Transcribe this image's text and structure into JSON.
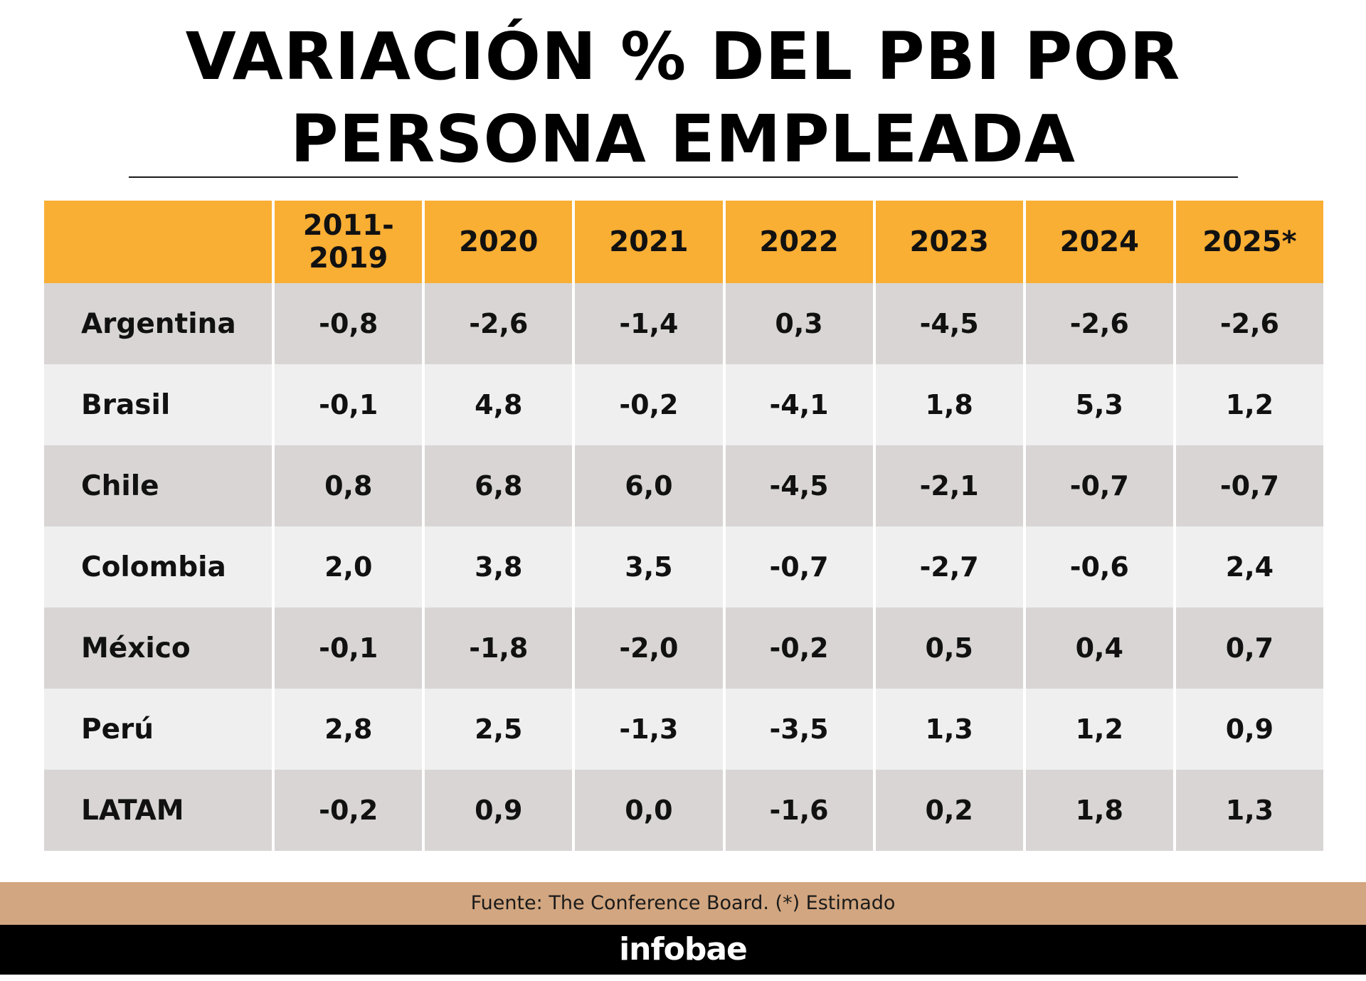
{
  "title": {
    "line1": "VARIACIÓN % DEL PBI POR",
    "line2": "PERSONA EMPLEADA"
  },
  "chart_data": {
    "type": "table",
    "title": "VARIACIÓN % DEL PBI POR PERSONA EMPLEADA",
    "columns": [
      "",
      "2011-2019",
      "2020",
      "2021",
      "2022",
      "2023",
      "2024",
      "2025*"
    ],
    "header_lines": [
      [
        ""
      ],
      [
        "2011-",
        "2019"
      ],
      [
        "2020"
      ],
      [
        "2021"
      ],
      [
        "2022"
      ],
      [
        "2023"
      ],
      [
        "2024"
      ],
      [
        "2025*"
      ]
    ],
    "rows": [
      {
        "country": "Argentina",
        "values": [
          "-0,8",
          "-2,6",
          "-1,4",
          "0,3",
          "-4,5",
          "-2,6",
          "-2,6"
        ]
      },
      {
        "country": "Brasil",
        "values": [
          "-0,1",
          "4,8",
          "-0,2",
          "-4,1",
          "1,8",
          "5,3",
          "1,2"
        ]
      },
      {
        "country": "Chile",
        "values": [
          "0,8",
          "6,8",
          "6,0",
          "-4,5",
          "-2,1",
          "-0,7",
          "-0,7"
        ]
      },
      {
        "country": "Colombia",
        "values": [
          "2,0",
          "3,8",
          "3,5",
          "-0,7",
          "-2,7",
          "-0,6",
          "2,4"
        ]
      },
      {
        "country": "México",
        "values": [
          "-0,1",
          "-1,8",
          "-2,0",
          "-0,2",
          "0,5",
          "0,4",
          "0,7"
        ]
      },
      {
        "country": "Perú",
        "values": [
          "2,8",
          "2,5",
          "-1,3",
          "-3,5",
          "1,3",
          "1,2",
          "0,9"
        ]
      },
      {
        "country": "LATAM",
        "values": [
          "-0,2",
          "0,9",
          "0,0",
          "-1,6",
          "0,2",
          "1,8",
          "1,3"
        ]
      }
    ]
  },
  "source": "Fuente: The Conference Board. (*) Estimado",
  "brand": "infobae",
  "colors": {
    "header": "#f9ae34",
    "row_dark": "#d8d5d4",
    "row_light": "#efefef",
    "source_bar": "#d2a680",
    "brand_bar": "#000000"
  }
}
